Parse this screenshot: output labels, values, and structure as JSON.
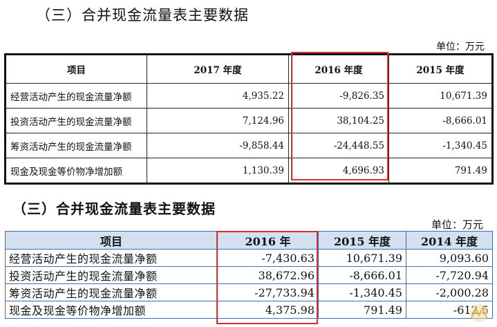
{
  "section1": {
    "title": "（三）合并现金流量表主要数据",
    "unit": "单位：万元",
    "headers": [
      "项目",
      "2017 年度",
      "2016 年度",
      "2015 年度"
    ],
    "rows": [
      [
        "经营活动产生的现金流量净额",
        "4,935.22",
        "-9,826.35",
        "10,671.39"
      ],
      [
        "投资活动产生的现金流量净额",
        "7,124.96",
        "38,104.25",
        "-8,666.01"
      ],
      [
        "筹资活动产生的现金流量净额",
        "-9,858.44",
        "-24,448.55",
        "-1,340.45"
      ],
      [
        "现金及现金等价物净增加额",
        "1,130.39",
        "4,696.93",
        "791.49"
      ]
    ]
  },
  "section2": {
    "title": "（三）合并现金流量表主要数据",
    "unit": "单位：万元",
    "headers": [
      "项目",
      "2016 年",
      "2015 年度",
      "2014 年度"
    ],
    "rows": [
      [
        "经营活动产生的现金流量净额",
        "-7,430.63",
        "10,671.39",
        "9,093.60"
      ],
      [
        "投资活动产生的现金流量净额",
        "38,672.96",
        "-8,666.01",
        "-7,720.94"
      ],
      [
        "筹资活动产生的现金流量净额",
        "-27,733.94",
        "-1,340.45",
        "-2,000.28"
      ],
      [
        "现金及现金等价物净增加额",
        "4,375.98",
        "791.49",
        "-612.5"
      ]
    ]
  },
  "highlight_color": "#e02a2a",
  "table2_header_bg": "#d3e0f0",
  "table2_border_color": "#3b6fb0"
}
